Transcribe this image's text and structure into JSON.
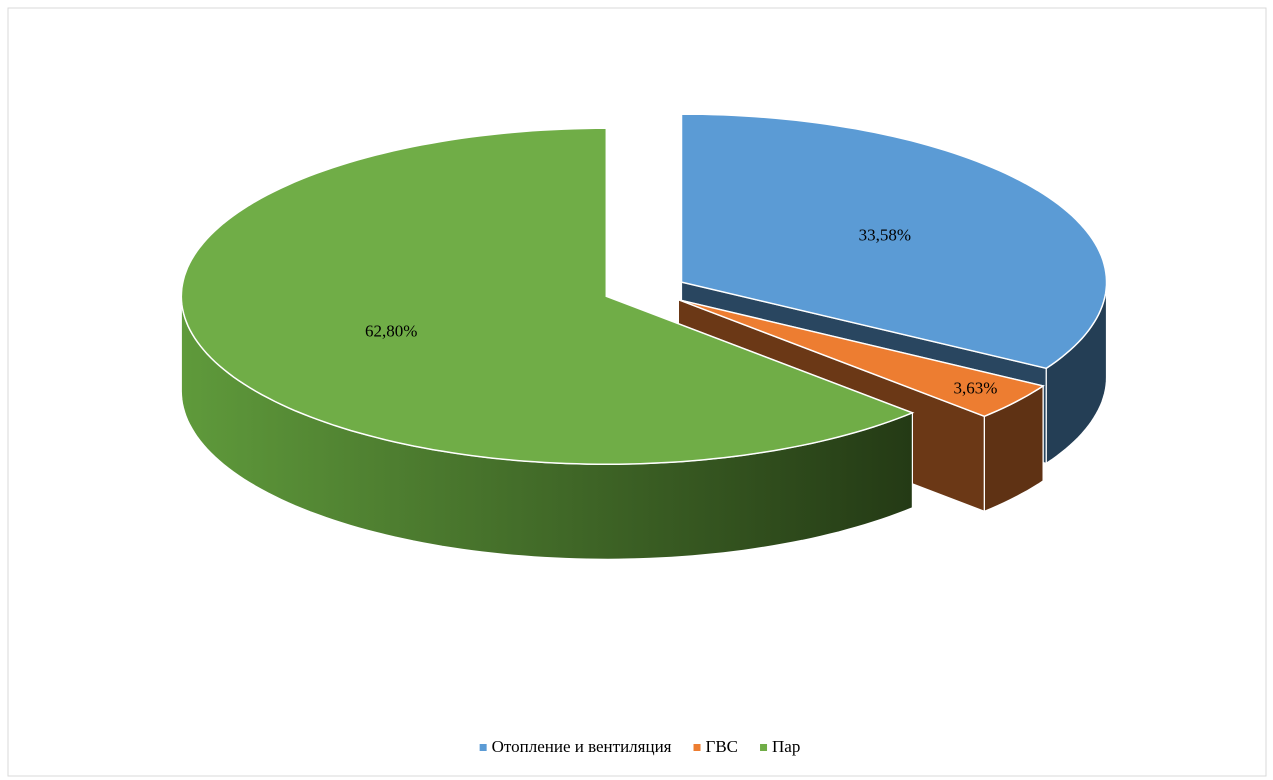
{
  "chart_data": {
    "type": "pie3d",
    "categories": [
      "Отопление и вентиляция",
      "ГВС",
      "Пар"
    ],
    "values": [
      33.58,
      3.63,
      62.8
    ],
    "value_labels": [
      "33,58%",
      "3,63%",
      "62,80%"
    ],
    "colors": [
      "#5b9bd5",
      "#ed7d31",
      "#70ad47"
    ],
    "legend": "bottom"
  }
}
